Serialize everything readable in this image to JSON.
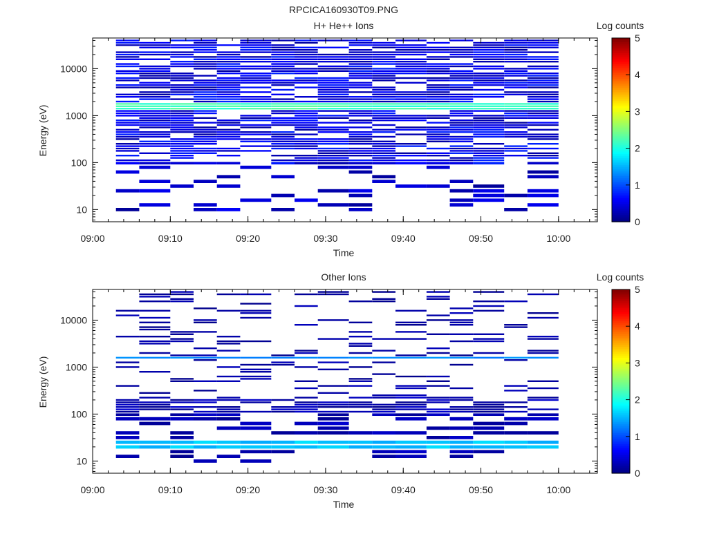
{
  "figure_title": "RPCICA160930T09.PNG",
  "colormap": [
    "#00007f",
    "#0000ff",
    "#007fff",
    "#00ffff",
    "#7fff7f",
    "#ffff00",
    "#ff7f00",
    "#ff0000",
    "#7f0000"
  ],
  "chart_data": [
    {
      "type": "heatmap",
      "title": "H+ He++ Ions",
      "xlabel": "Time",
      "ylabel": "Energy (eV)",
      "x_ticks": [
        "09:00",
        "09:10",
        "09:20",
        "09:30",
        "09:40",
        "09:50",
        "10:00"
      ],
      "x_range": [
        "09:00",
        "10:05"
      ],
      "y_scale": "log",
      "y_ticks": [
        10,
        100,
        1000,
        10000
      ],
      "y_tick_labels": [
        "10",
        "100",
        "1000",
        "10000"
      ],
      "y_range": [
        5.5,
        45000
      ],
      "colorbar": {
        "label": "Log counts",
        "range": [
          0,
          5
        ],
        "ticks": [
          "0",
          "1",
          "2",
          "3",
          "4",
          "5"
        ]
      },
      "time_bins_start": [
        "09:03",
        "09:06",
        "09:10",
        "09:13",
        "09:16",
        "09:19",
        "09:23",
        "09:26",
        "09:29",
        "09:33",
        "09:36",
        "09:39",
        "09:43",
        "09:46",
        "09:49",
        "09:53",
        "09:56"
      ],
      "time_bins_end": "10:00",
      "energy_channels_log10": [
        1.0,
        1.1,
        1.2,
        1.3,
        1.4,
        1.5,
        1.6,
        1.7,
        1.8,
        1.9,
        2.0,
        2.05,
        2.1,
        2.15,
        2.2,
        2.25,
        2.3,
        2.35,
        2.4,
        2.45,
        2.5,
        2.55,
        2.6,
        2.65,
        2.7,
        2.75,
        2.8,
        2.85,
        2.9,
        2.95,
        3.0,
        3.05,
        3.1,
        3.15,
        3.2,
        3.25,
        3.3,
        3.35,
        3.4,
        3.45,
        3.5,
        3.55,
        3.6,
        3.65,
        3.7,
        3.75,
        3.8,
        3.85,
        3.9,
        3.95,
        4.0,
        4.05,
        4.1,
        4.15,
        4.2,
        4.25,
        4.3,
        4.35,
        4.4,
        4.45,
        4.5,
        4.55,
        4.6
      ],
      "cell_log_counts_summary": {
        "dense_channel_range_log10": [
          2.0,
          4.6
        ],
        "typical_level": 0.4,
        "peak_band_log10": [
          3.15,
          3.25
        ],
        "peak_band_level": 2.2
      }
    },
    {
      "type": "heatmap",
      "title": "Other Ions",
      "xlabel": "Time",
      "ylabel": "Energy (eV)",
      "x_ticks": [
        "09:00",
        "09:10",
        "09:20",
        "09:30",
        "09:40",
        "09:50",
        "10:00"
      ],
      "x_range": [
        "09:00",
        "10:05"
      ],
      "y_scale": "log",
      "y_ticks": [
        10,
        100,
        1000,
        10000
      ],
      "y_tick_labels": [
        "10",
        "100",
        "1000",
        "10000"
      ],
      "y_range": [
        5.5,
        45000
      ],
      "colorbar": {
        "label": "Log counts",
        "range": [
          0,
          5
        ],
        "ticks": [
          "0",
          "1",
          "2",
          "3",
          "4",
          "5"
        ]
      },
      "time_bins_start": [
        "09:03",
        "09:06",
        "09:10",
        "09:13",
        "09:16",
        "09:19",
        "09:23",
        "09:26",
        "09:29",
        "09:33",
        "09:36",
        "09:39",
        "09:43",
        "09:46",
        "09:49",
        "09:53",
        "09:56"
      ],
      "time_bins_end": "10:00",
      "energy_channels_log10": [
        1.0,
        1.1,
        1.2,
        1.3,
        1.4,
        1.5,
        1.6,
        1.7,
        1.8,
        1.9,
        2.0,
        2.05,
        2.1,
        2.15,
        2.2,
        2.25,
        2.3,
        2.35,
        2.4,
        2.45,
        2.5,
        2.55,
        2.6,
        2.65,
        2.7,
        2.75,
        2.8,
        2.85,
        2.9,
        2.95,
        3.0,
        3.05,
        3.1,
        3.15,
        3.2,
        3.25,
        3.3,
        3.35,
        3.4,
        3.45,
        3.5,
        3.55,
        3.6,
        3.65,
        3.7,
        3.75,
        3.8,
        3.85,
        3.9,
        3.95,
        4.0,
        4.05,
        4.1,
        4.15,
        4.2,
        4.25,
        4.3,
        4.35,
        4.4,
        4.45,
        4.5,
        4.55,
        4.6
      ],
      "cell_log_counts_summary": {
        "dense_channel_range_log10": [
          1.2,
          2.35
        ],
        "typical_level": 0.2,
        "peak_band_log10": [
          1.3,
          1.45
        ],
        "peak_band_level": 1.6,
        "secondary_band_log10": [
          3.2,
          3.2
        ],
        "secondary_band_level": 1.3
      }
    }
  ]
}
